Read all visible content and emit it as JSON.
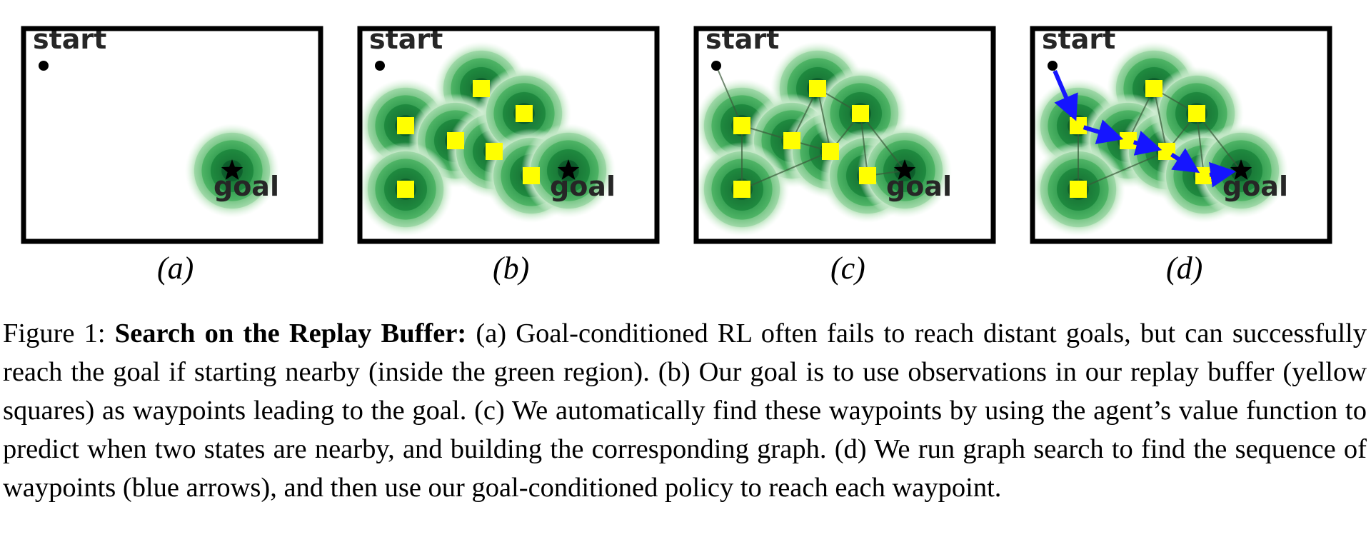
{
  "figure": {
    "start_label": "start",
    "goal_label": "goal",
    "subfigure_labels": [
      "(a)",
      "(b)",
      "(c)",
      "(d)"
    ],
    "colors": {
      "waypoint": "#ffff00",
      "region_dark": "#0a5c2a",
      "region_light": "#9fd8a4",
      "arrow": "#1515ff",
      "edge": "#3a5a3a"
    }
  },
  "caption": {
    "prefix": "Figure 1: ",
    "title": "Search on the Replay Buffer:",
    "body": " (a) Goal-conditioned RL often fails to reach distant goals, but can successfully reach the goal if starting nearby (inside the green region). (b) Our goal is to use observations in our replay buffer (yellow squares) as waypoints leading to the goal. (c) We automatically find these waypoints by using the agent’s value function to predict when two states are nearby, and building the corresponding graph. (d) We run graph search to find the sequence of waypoints (blue arrows), and then use our goal-conditioned policy to reach each waypoint."
  }
}
